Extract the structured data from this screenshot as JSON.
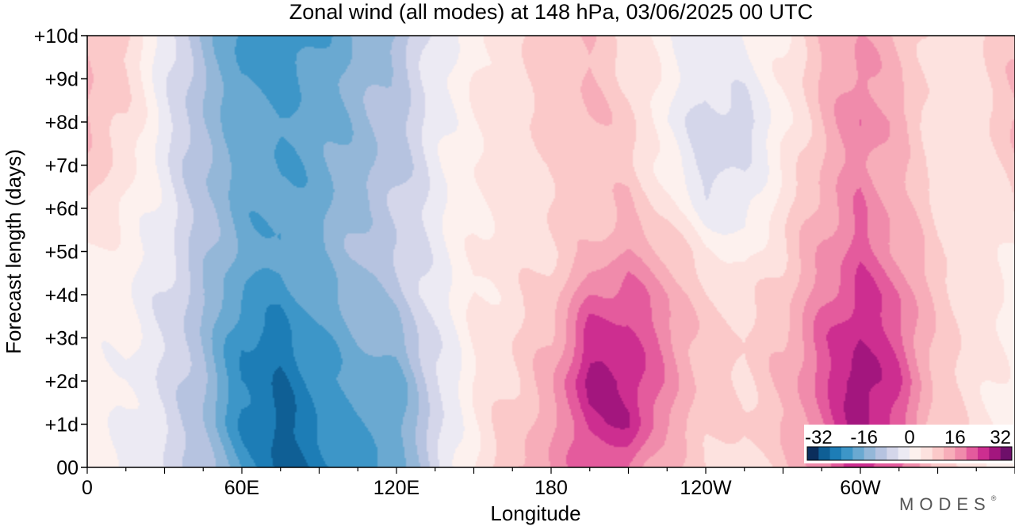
{
  "title": "Zonal wind (all modes) at 148 hPa,  03/06/2025  00 UTC",
  "logo": "MODES",
  "logo_mark": "®",
  "chart_data": {
    "type": "heatmap",
    "title": "Zonal wind (all modes) at 148 hPa,  03/06/2025  00 UTC",
    "xlabel": "Longitude",
    "ylabel": "Forecast length (days)",
    "x_ticks": [
      "0",
      "60E",
      "120E",
      "180",
      "120W",
      "60W"
    ],
    "x_tick_values": [
      0,
      60,
      120,
      180,
      240,
      300
    ],
    "xlim": [
      0,
      360
    ],
    "y_ticks": [
      "00",
      "+1d",
      "+2d",
      "+3d",
      "+4d",
      "+5d",
      "+6d",
      "+7d",
      "+8d",
      "+9d",
      "+10d"
    ],
    "y_tick_values": [
      0,
      1,
      2,
      3,
      4,
      5,
      6,
      7,
      8,
      9,
      10
    ],
    "ylim": [
      0,
      10
    ],
    "colorbar": {
      "tick_labels": [
        "-32",
        "-16",
        "0",
        "16",
        "32"
      ],
      "tick_values": [
        -32,
        -16,
        0,
        16,
        32
      ],
      "range": [
        -36,
        36
      ],
      "bin_width": 4,
      "colors": [
        "#0b2e5c",
        "#0f5f95",
        "#1d7db6",
        "#3d96c8",
        "#6aa9d1",
        "#94b7d8",
        "#b6c3e0",
        "#d4d6ea",
        "#eceaf3",
        "#fdf1ee",
        "#fde2df",
        "#fbc9c9",
        "#f7adb9",
        "#f08bab",
        "#e45b9d",
        "#cd2e90",
        "#a3167e",
        "#6e0f6a"
      ]
    },
    "field": {
      "longitudes": [
        0,
        15,
        30,
        45,
        60,
        75,
        90,
        105,
        120,
        135,
        150,
        165,
        180,
        195,
        210,
        225,
        240,
        255,
        270,
        285,
        300,
        315,
        330,
        345,
        360
      ],
      "forecast_days": [
        0,
        1,
        2,
        3,
        4,
        5,
        6,
        7,
        8,
        9,
        10
      ],
      "values": [
        [
          2,
          -1,
          -4,
          -10,
          -20,
          -30,
          -26,
          -22,
          -18,
          -6,
          4,
          12,
          16,
          22,
          20,
          12,
          8,
          6,
          10,
          18,
          28,
          20,
          10,
          6,
          2
        ],
        [
          2,
          0,
          -4,
          -12,
          -24,
          -30,
          -24,
          -20,
          -18,
          -6,
          4,
          10,
          14,
          26,
          28,
          16,
          10,
          8,
          12,
          20,
          30,
          22,
          10,
          6,
          2
        ],
        [
          2,
          0,
          -4,
          -12,
          -24,
          -28,
          -22,
          -18,
          -18,
          -6,
          4,
          8,
          14,
          30,
          28,
          18,
          10,
          8,
          12,
          22,
          32,
          24,
          10,
          6,
          2
        ],
        [
          2,
          1,
          -4,
          -12,
          -24,
          -26,
          -20,
          -16,
          -14,
          -4,
          4,
          8,
          12,
          26,
          26,
          18,
          10,
          8,
          12,
          22,
          28,
          22,
          10,
          6,
          2
        ],
        [
          2,
          1,
          -4,
          -12,
          -20,
          -22,
          -18,
          -14,
          -10,
          -2,
          4,
          6,
          10,
          20,
          22,
          16,
          8,
          6,
          10,
          18,
          26,
          20,
          10,
          6,
          2
        ],
        [
          4,
          2,
          -2,
          -10,
          -18,
          -20,
          -16,
          -12,
          -8,
          -2,
          4,
          6,
          8,
          12,
          16,
          12,
          4,
          2,
          8,
          16,
          22,
          16,
          8,
          6,
          4
        ],
        [
          8,
          4,
          -2,
          -10,
          -18,
          -20,
          -18,
          -12,
          -8,
          -2,
          4,
          6,
          8,
          10,
          12,
          6,
          -2,
          -2,
          6,
          14,
          20,
          14,
          8,
          6,
          8
        ],
        [
          10,
          6,
          -2,
          -12,
          -18,
          -20,
          -18,
          -14,
          -10,
          -2,
          4,
          6,
          8,
          10,
          10,
          2,
          -6,
          -4,
          4,
          12,
          18,
          12,
          6,
          6,
          10
        ],
        [
          12,
          8,
          -2,
          -12,
          -18,
          -20,
          -18,
          -14,
          -10,
          -2,
          4,
          6,
          10,
          12,
          10,
          0,
          -6,
          -6,
          2,
          12,
          20,
          14,
          6,
          6,
          12
        ],
        [
          12,
          8,
          -2,
          -12,
          -20,
          -22,
          -18,
          -14,
          -10,
          -2,
          4,
          6,
          10,
          12,
          8,
          2,
          -4,
          -2,
          4,
          12,
          18,
          12,
          6,
          6,
          12
        ],
        [
          12,
          8,
          -2,
          -12,
          -22,
          -24,
          -20,
          -16,
          -12,
          -2,
          2,
          6,
          10,
          12,
          6,
          2,
          -2,
          0,
          4,
          12,
          16,
          12,
          6,
          6,
          12
        ]
      ]
    }
  }
}
